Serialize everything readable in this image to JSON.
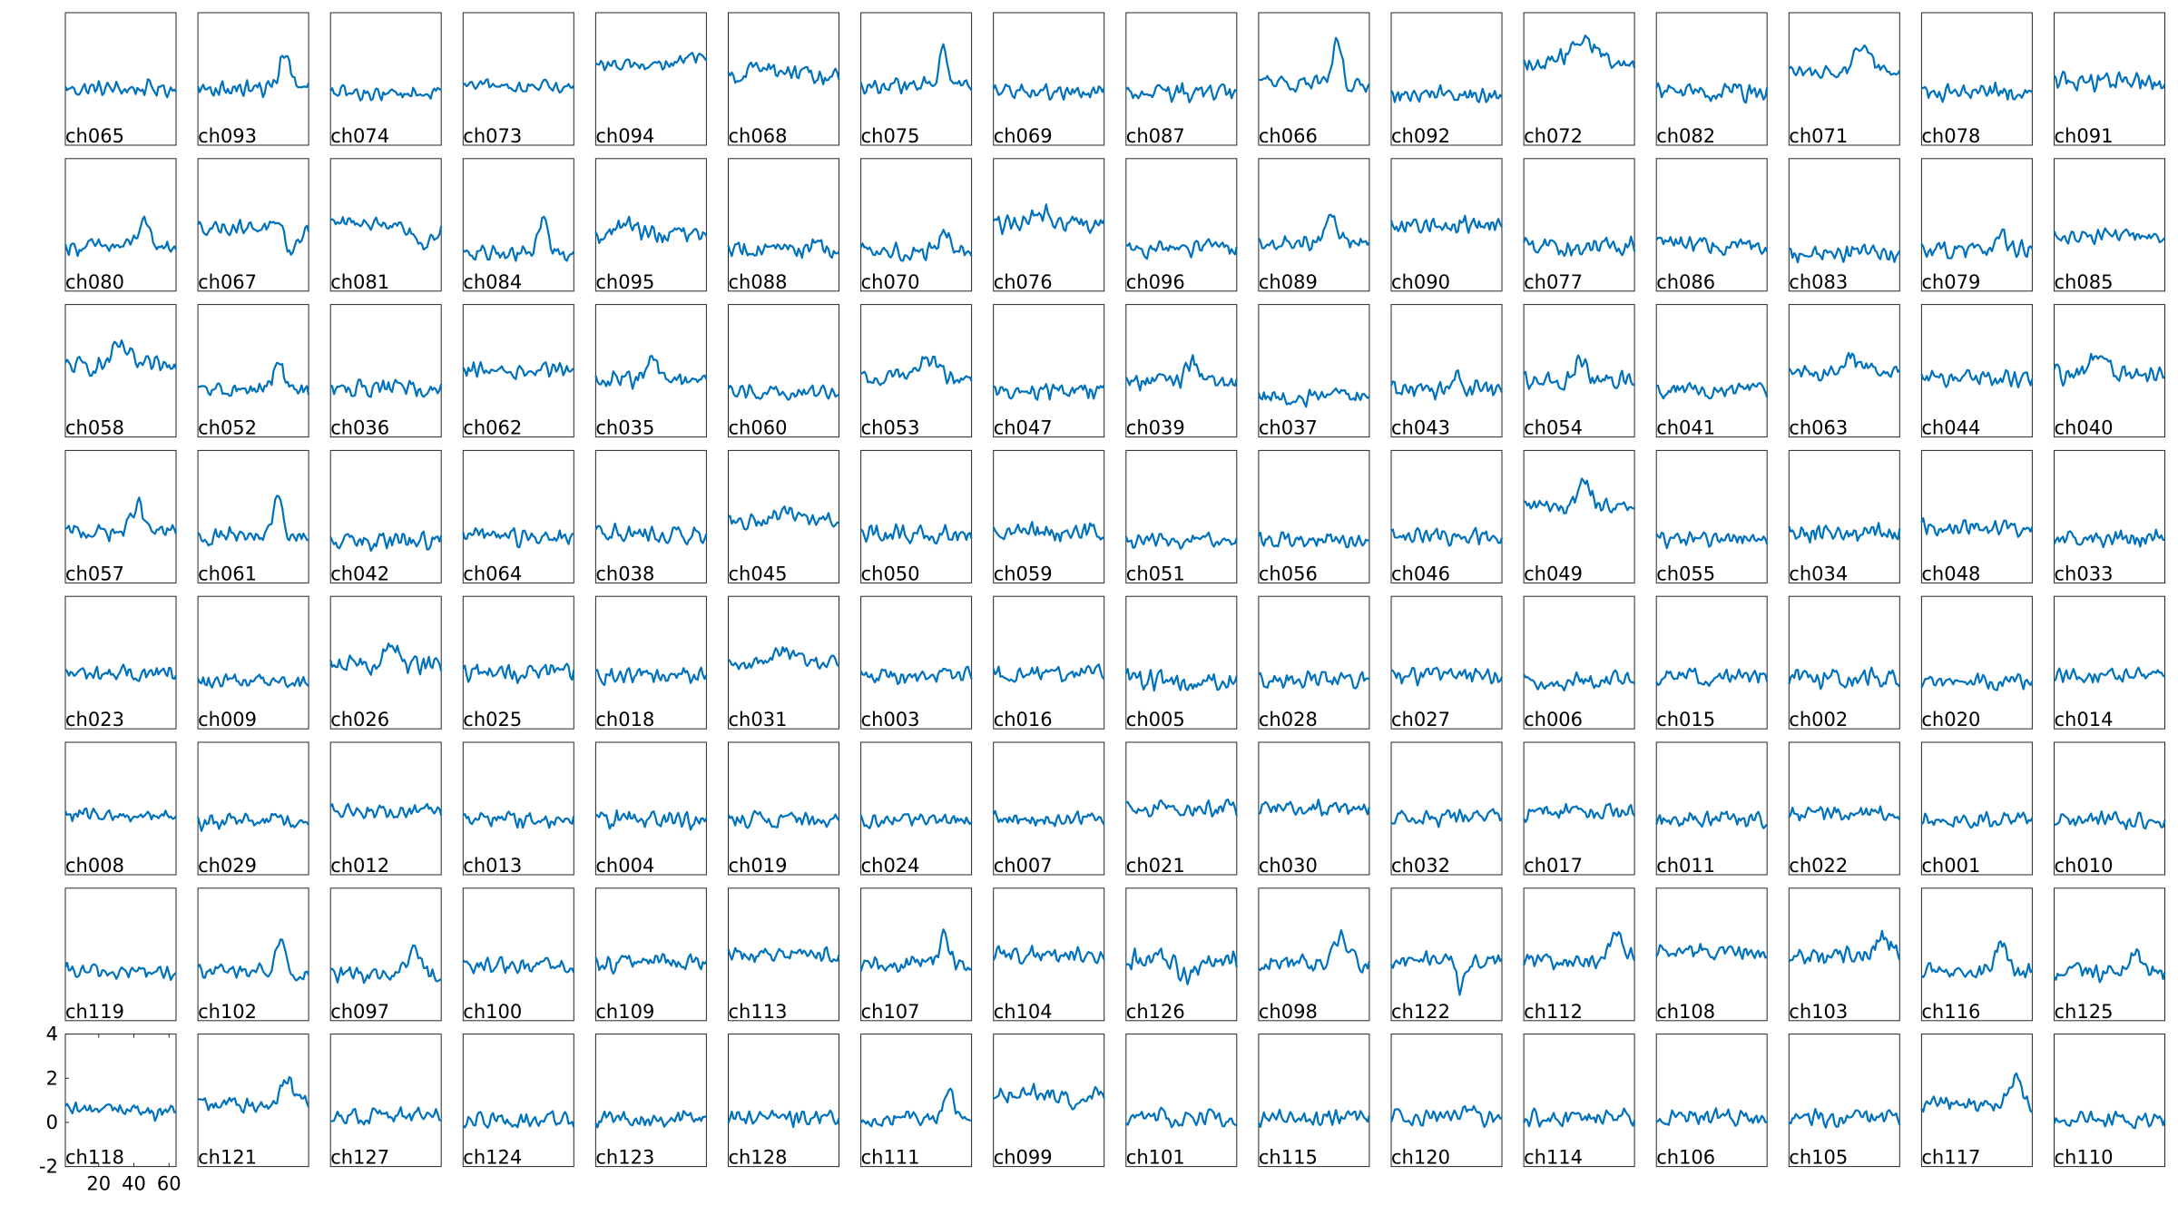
{
  "figure": {
    "line_color": "#0072bd",
    "frame_color": "#262626",
    "text_color": "#000000",
    "background": "#ffffff"
  },
  "chart_data": {
    "type": "line",
    "layout_rows": 8,
    "layout_cols": 16,
    "x": [
      1,
      64
    ],
    "xlim": [
      1,
      64
    ],
    "ylim": [
      -2,
      4
    ],
    "yticks": [
      -2,
      0,
      2,
      4
    ],
    "xticks": [
      20,
      40,
      60
    ],
    "axis_labels_panel": "ch118",
    "grid": false,
    "legend": "none",
    "channels": [
      [
        "ch065",
        "ch093",
        "ch074",
        "ch073",
        "ch094",
        "ch068",
        "ch075",
        "ch069",
        "ch087",
        "ch066",
        "ch092",
        "ch072",
        "ch082",
        "ch071",
        "ch078",
        "ch091"
      ],
      [
        "ch080",
        "ch067",
        "ch081",
        "ch084",
        "ch095",
        "ch088",
        "ch070",
        "ch076",
        "ch096",
        "ch089",
        "ch090",
        "ch077",
        "ch086",
        "ch083",
        "ch079",
        "ch085"
      ],
      [
        "ch058",
        "ch052",
        "ch036",
        "ch062",
        "ch035",
        "ch060",
        "ch053",
        "ch047",
        "ch039",
        "ch037",
        "ch043",
        "ch054",
        "ch041",
        "ch063",
        "ch044",
        "ch040"
      ],
      [
        "ch057",
        "ch061",
        "ch042",
        "ch064",
        "ch038",
        "ch045",
        "ch050",
        "ch059",
        "ch051",
        "ch056",
        "ch046",
        "ch049",
        "ch055",
        "ch034",
        "ch048",
        "ch033"
      ],
      [
        "ch023",
        "ch009",
        "ch026",
        "ch025",
        "ch018",
        "ch031",
        "ch003",
        "ch016",
        "ch005",
        "ch028",
        "ch027",
        "ch006",
        "ch015",
        "ch002",
        "ch020",
        "ch014"
      ],
      [
        "ch008",
        "ch029",
        "ch012",
        "ch013",
        "ch004",
        "ch019",
        "ch024",
        "ch007",
        "ch021",
        "ch030",
        "ch032",
        "ch017",
        "ch011",
        "ch022",
        "ch001",
        "ch010"
      ],
      [
        "ch119",
        "ch102",
        "ch097",
        "ch100",
        "ch109",
        "ch113",
        "ch107",
        "ch104",
        "ch126",
        "ch098",
        "ch122",
        "ch112",
        "ch108",
        "ch103",
        "ch116",
        "ch125"
      ],
      [
        "ch118",
        "ch121",
        "ch127",
        "ch124",
        "ch123",
        "ch128",
        "ch111",
        "ch099",
        "ch101",
        "ch115",
        "ch120",
        "ch114",
        "ch106",
        "ch105",
        "ch117",
        "ch110"
      ]
    ],
    "traces": [
      [
        {
          "baseline": 0.55,
          "noise": 0.45,
          "bumps": []
        },
        {
          "baseline": 0.55,
          "noise": 0.45,
          "bumps": [
            [
              0.78,
              0.07,
              1.6
            ]
          ]
        },
        {
          "baseline": 0.35,
          "noise": 0.4,
          "bumps": []
        },
        {
          "baseline": 0.65,
          "noise": 0.35,
          "bumps": []
        },
        {
          "baseline": 1.6,
          "noise": 0.35,
          "bumps": [
            [
              0.9,
              0.15,
              0.4
            ]
          ]
        },
        {
          "baseline": 1.1,
          "noise": 0.5,
          "bumps": [
            [
              0.3,
              0.2,
              0.5
            ]
          ]
        },
        {
          "baseline": 0.7,
          "noise": 0.45,
          "bumps": [
            [
              0.75,
              0.06,
              1.5
            ]
          ]
        },
        {
          "baseline": 0.4,
          "noise": 0.45,
          "bumps": []
        },
        {
          "baseline": 0.35,
          "noise": 0.5,
          "bumps": []
        },
        {
          "baseline": 0.8,
          "noise": 0.5,
          "bumps": [
            [
              0.7,
              0.06,
              1.7
            ]
          ]
        },
        {
          "baseline": 0.3,
          "noise": 0.5,
          "bumps": []
        },
        {
          "baseline": 1.7,
          "noise": 0.45,
          "bumps": [
            [
              0.55,
              0.18,
              0.9
            ]
          ]
        },
        {
          "baseline": 0.4,
          "noise": 0.5,
          "bumps": []
        },
        {
          "baseline": 1.3,
          "noise": 0.4,
          "bumps": [
            [
              0.65,
              0.1,
              1.1
            ]
          ]
        },
        {
          "baseline": 0.4,
          "noise": 0.45,
          "bumps": []
        },
        {
          "baseline": 0.9,
          "noise": 0.6,
          "bumps": []
        }
      ],
      [
        {
          "baseline": 0.0,
          "noise": 0.45,
          "bumps": [
            [
              0.7,
              0.08,
              1.0
            ]
          ]
        },
        {
          "baseline": 0.9,
          "noise": 0.4,
          "bumps": [
            [
              0.85,
              0.08,
              -1.1
            ]
          ]
        },
        {
          "baseline": 1.1,
          "noise": 0.4,
          "bumps": [
            [
              0.85,
              0.14,
              -1.0
            ]
          ]
        },
        {
          "baseline": -0.3,
          "noise": 0.45,
          "bumps": [
            [
              0.72,
              0.06,
              1.6
            ]
          ]
        },
        {
          "baseline": 0.5,
          "noise": 0.5,
          "bumps": [
            [
              0.3,
              0.15,
              0.5
            ]
          ]
        },
        {
          "baseline": -0.1,
          "noise": 0.5,
          "bumps": []
        },
        {
          "baseline": -0.2,
          "noise": 0.5,
          "bumps": [
            [
              0.75,
              0.07,
              0.8
            ]
          ]
        },
        {
          "baseline": 1.0,
          "noise": 0.5,
          "bumps": [
            [
              0.45,
              0.12,
              0.6
            ]
          ]
        },
        {
          "baseline": -0.1,
          "noise": 0.5,
          "bumps": []
        },
        {
          "baseline": 0.2,
          "noise": 0.5,
          "bumps": [
            [
              0.65,
              0.06,
              1.3
            ]
          ]
        },
        {
          "baseline": 1.0,
          "noise": 0.5,
          "bumps": []
        },
        {
          "baseline": 0.0,
          "noise": 0.5,
          "bumps": []
        },
        {
          "baseline": 0.1,
          "noise": 0.5,
          "bumps": []
        },
        {
          "baseline": -0.3,
          "noise": 0.5,
          "bumps": []
        },
        {
          "baseline": -0.1,
          "noise": 0.5,
          "bumps": [
            [
              0.7,
              0.06,
              0.9
            ]
          ]
        },
        {
          "baseline": 0.5,
          "noise": 0.45,
          "bumps": []
        }
      ],
      [
        {
          "baseline": 1.2,
          "noise": 0.5,
          "bumps": [
            [
              0.5,
              0.1,
              0.9
            ]
          ]
        },
        {
          "baseline": 0.1,
          "noise": 0.45,
          "bumps": [
            [
              0.72,
              0.07,
              1.2
            ]
          ]
        },
        {
          "baseline": 0.2,
          "noise": 0.45,
          "bumps": []
        },
        {
          "baseline": 1.0,
          "noise": 0.45,
          "bumps": []
        },
        {
          "baseline": 0.6,
          "noise": 0.5,
          "bumps": [
            [
              0.5,
              0.08,
              1.0
            ]
          ]
        },
        {
          "baseline": 0.0,
          "noise": 0.45,
          "bumps": []
        },
        {
          "baseline": 0.7,
          "noise": 0.4,
          "bumps": [
            [
              0.6,
              0.12,
              0.9
            ]
          ]
        },
        {
          "baseline": 0.1,
          "noise": 0.5,
          "bumps": []
        },
        {
          "baseline": 0.5,
          "noise": 0.5,
          "bumps": [
            [
              0.6,
              0.08,
              0.9
            ]
          ]
        },
        {
          "baseline": -0.2,
          "noise": 0.45,
          "bumps": []
        },
        {
          "baseline": 0.1,
          "noise": 0.5,
          "bumps": [
            [
              0.6,
              0.06,
              0.8
            ]
          ]
        },
        {
          "baseline": 0.6,
          "noise": 0.55,
          "bumps": [
            [
              0.5,
              0.06,
              1.0
            ]
          ]
        },
        {
          "baseline": 0.1,
          "noise": 0.5,
          "bumps": []
        },
        {
          "baseline": 0.9,
          "noise": 0.45,
          "bumps": [
            [
              0.55,
              0.1,
              0.8
            ]
          ]
        },
        {
          "baseline": 0.6,
          "noise": 0.5,
          "bumps": []
        },
        {
          "baseline": 0.8,
          "noise": 0.5,
          "bumps": [
            [
              0.4,
              0.12,
              0.8
            ]
          ]
        }
      ],
      [
        {
          "baseline": 0.3,
          "noise": 0.45,
          "bumps": [
            [
              0.65,
              0.07,
              1.3
            ]
          ]
        },
        {
          "baseline": 0.1,
          "noise": 0.45,
          "bumps": [
            [
              0.72,
              0.06,
              1.6
            ]
          ]
        },
        {
          "baseline": -0.1,
          "noise": 0.5,
          "bumps": []
        },
        {
          "baseline": 0.1,
          "noise": 0.5,
          "bumps": []
        },
        {
          "baseline": 0.2,
          "noise": 0.5,
          "bumps": []
        },
        {
          "baseline": 0.8,
          "noise": 0.45,
          "bumps": [
            [
              0.5,
              0.12,
              0.5
            ]
          ]
        },
        {
          "baseline": 0.2,
          "noise": 0.5,
          "bumps": []
        },
        {
          "baseline": 0.3,
          "noise": 0.5,
          "bumps": []
        },
        {
          "baseline": -0.1,
          "noise": 0.45,
          "bumps": []
        },
        {
          "baseline": -0.1,
          "noise": 0.45,
          "bumps": []
        },
        {
          "baseline": 0.1,
          "noise": 0.5,
          "bumps": []
        },
        {
          "baseline": 1.5,
          "noise": 0.4,
          "bumps": [
            [
              0.55,
              0.08,
              1.0
            ]
          ]
        },
        {
          "baseline": 0.0,
          "noise": 0.45,
          "bumps": []
        },
        {
          "baseline": 0.3,
          "noise": 0.5,
          "bumps": []
        },
        {
          "baseline": 0.5,
          "noise": 0.45,
          "bumps": []
        },
        {
          "baseline": 0.0,
          "noise": 0.45,
          "bumps": []
        }
      ],
      [
        {
          "baseline": 0.5,
          "noise": 0.5,
          "bumps": []
        },
        {
          "baseline": 0.1,
          "noise": 0.45,
          "bumps": []
        },
        {
          "baseline": 0.9,
          "noise": 0.5,
          "bumps": [
            [
              0.55,
              0.08,
              1.0
            ]
          ]
        },
        {
          "baseline": 0.5,
          "noise": 0.5,
          "bumps": []
        },
        {
          "baseline": 0.4,
          "noise": 0.5,
          "bumps": []
        },
        {
          "baseline": 0.9,
          "noise": 0.5,
          "bumps": [
            [
              0.5,
              0.1,
              0.7
            ]
          ]
        },
        {
          "baseline": 0.4,
          "noise": 0.45,
          "bumps": []
        },
        {
          "baseline": 0.5,
          "noise": 0.45,
          "bumps": []
        },
        {
          "baseline": 0.2,
          "noise": 0.6,
          "bumps": []
        },
        {
          "baseline": 0.2,
          "noise": 0.5,
          "bumps": []
        },
        {
          "baseline": 0.4,
          "noise": 0.5,
          "bumps": []
        },
        {
          "baseline": 0.2,
          "noise": 0.5,
          "bumps": []
        },
        {
          "baseline": 0.4,
          "noise": 0.5,
          "bumps": []
        },
        {
          "baseline": 0.3,
          "noise": 0.55,
          "bumps": []
        },
        {
          "baseline": 0.1,
          "noise": 0.45,
          "bumps": []
        },
        {
          "baseline": 0.4,
          "noise": 0.45,
          "bumps": []
        }
      ],
      [
        {
          "baseline": 0.7,
          "noise": 0.4,
          "bumps": []
        },
        {
          "baseline": 0.4,
          "noise": 0.45,
          "bumps": []
        },
        {
          "baseline": 0.9,
          "noise": 0.4,
          "bumps": []
        },
        {
          "baseline": 0.5,
          "noise": 0.45,
          "bumps": []
        },
        {
          "baseline": 0.5,
          "noise": 0.5,
          "bumps": []
        },
        {
          "baseline": 0.5,
          "noise": 0.45,
          "bumps": []
        },
        {
          "baseline": 0.5,
          "noise": 0.4,
          "bumps": []
        },
        {
          "baseline": 0.5,
          "noise": 0.45,
          "bumps": []
        },
        {
          "baseline": 1.0,
          "noise": 0.45,
          "bumps": []
        },
        {
          "baseline": 1.0,
          "noise": 0.45,
          "bumps": []
        },
        {
          "baseline": 0.6,
          "noise": 0.45,
          "bumps": []
        },
        {
          "baseline": 0.8,
          "noise": 0.5,
          "bumps": []
        },
        {
          "baseline": 0.5,
          "noise": 0.45,
          "bumps": []
        },
        {
          "baseline": 0.8,
          "noise": 0.45,
          "bumps": []
        },
        {
          "baseline": 0.5,
          "noise": 0.45,
          "bumps": []
        },
        {
          "baseline": 0.5,
          "noise": 0.45,
          "bumps": []
        }
      ],
      [
        {
          "baseline": 0.2,
          "noise": 0.45,
          "bumps": []
        },
        {
          "baseline": 0.2,
          "noise": 0.45,
          "bumps": [
            [
              0.75,
              0.07,
              1.4
            ]
          ]
        },
        {
          "baseline": 0.1,
          "noise": 0.45,
          "bumps": [
            [
              0.75,
              0.08,
              1.1
            ]
          ]
        },
        {
          "baseline": 0.5,
          "noise": 0.45,
          "bumps": []
        },
        {
          "baseline": 0.6,
          "noise": 0.5,
          "bumps": []
        },
        {
          "baseline": 1.0,
          "noise": 0.45,
          "bumps": []
        },
        {
          "baseline": 0.5,
          "noise": 0.5,
          "bumps": [
            [
              0.75,
              0.07,
              1.3
            ]
          ]
        },
        {
          "baseline": 1.0,
          "noise": 0.5,
          "bumps": []
        },
        {
          "baseline": 0.8,
          "noise": 0.55,
          "bumps": [
            [
              0.55,
              0.12,
              -0.8
            ]
          ]
        },
        {
          "baseline": 0.6,
          "noise": 0.5,
          "bumps": [
            [
              0.75,
              0.08,
              1.2
            ]
          ]
        },
        {
          "baseline": 0.8,
          "noise": 0.5,
          "bumps": [
            [
              0.62,
              0.05,
              -1.2
            ]
          ]
        },
        {
          "baseline": 0.7,
          "noise": 0.45,
          "bumps": [
            [
              0.85,
              0.1,
              1.1
            ]
          ]
        },
        {
          "baseline": 1.1,
          "noise": 0.45,
          "bumps": []
        },
        {
          "baseline": 0.9,
          "noise": 0.5,
          "bumps": [
            [
              0.85,
              0.12,
              0.8
            ]
          ]
        },
        {
          "baseline": 0.2,
          "noise": 0.45,
          "bumps": [
            [
              0.72,
              0.07,
              1.4
            ]
          ]
        },
        {
          "baseline": 0.2,
          "noise": 0.5,
          "bumps": [
            [
              0.72,
              0.08,
              0.9
            ]
          ]
        }
      ],
      [
        {
          "baseline": 0.5,
          "noise": 0.45,
          "bumps": [
            [
              0.4,
              0.12,
              0.3
            ]
          ]
        },
        {
          "baseline": 0.8,
          "noise": 0.45,
          "bumps": [
            [
              0.8,
              0.07,
              1.1
            ]
          ]
        },
        {
          "baseline": 0.3,
          "noise": 0.45,
          "bumps": []
        },
        {
          "baseline": 0.1,
          "noise": 0.45,
          "bumps": []
        },
        {
          "baseline": 0.2,
          "noise": 0.45,
          "bumps": []
        },
        {
          "baseline": 0.2,
          "noise": 0.45,
          "bumps": []
        },
        {
          "baseline": 0.2,
          "noise": 0.45,
          "bumps": [
            [
              0.8,
              0.08,
              1.0
            ]
          ]
        },
        {
          "baseline": 1.3,
          "noise": 0.45,
          "bumps": [
            [
              0.75,
              0.08,
              -0.7
            ]
          ]
        },
        {
          "baseline": 0.2,
          "noise": 0.5,
          "bumps": []
        },
        {
          "baseline": 0.2,
          "noise": 0.5,
          "bumps": []
        },
        {
          "baseline": 0.2,
          "noise": 0.45,
          "bumps": [
            [
              0.7,
              0.08,
              0.5
            ]
          ]
        },
        {
          "baseline": 0.2,
          "noise": 0.5,
          "bumps": []
        },
        {
          "baseline": 0.2,
          "noise": 0.45,
          "bumps": []
        },
        {
          "baseline": 0.2,
          "noise": 0.5,
          "bumps": []
        },
        {
          "baseline": 0.8,
          "noise": 0.45,
          "bumps": [
            [
              0.85,
              0.08,
              1.2
            ]
          ]
        },
        {
          "baseline": 0.1,
          "noise": 0.45,
          "bumps": []
        }
      ]
    ]
  }
}
